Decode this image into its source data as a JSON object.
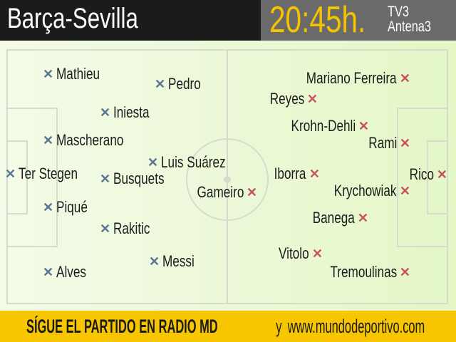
{
  "header": {
    "match": "Barça-Sevilla",
    "time": "20:45h.",
    "channels": [
      "TV3",
      "Antena3"
    ]
  },
  "colors": {
    "home_marker": "#5b7494",
    "away_marker": "#c9505e",
    "footer": "#f7c600",
    "time": "#f5c400"
  },
  "home_team": {
    "marker_icon": "x-icon",
    "players": [
      "Mathieu",
      "Pedro",
      "Iniesta",
      "Mascherano",
      "Luis Suárez",
      "Ter Stegen",
      "Busquets",
      "Piqué",
      "Rakitic",
      "Messi",
      "Alves"
    ]
  },
  "away_team": {
    "marker_icon": "x-icon",
    "players": [
      "Mariano Ferreira",
      "Reyes",
      "Krohn-Dehli",
      "Rami",
      "Iborra",
      "Rico",
      "Gameiro",
      "Krychowiak",
      "Banega",
      "Vitolo",
      "Tremoulinas"
    ]
  },
  "footer": {
    "main": "SÍGUE EL PARTIDO EN RADIO MD",
    "connector": "y",
    "url": "www.mundodeportivo.com"
  }
}
